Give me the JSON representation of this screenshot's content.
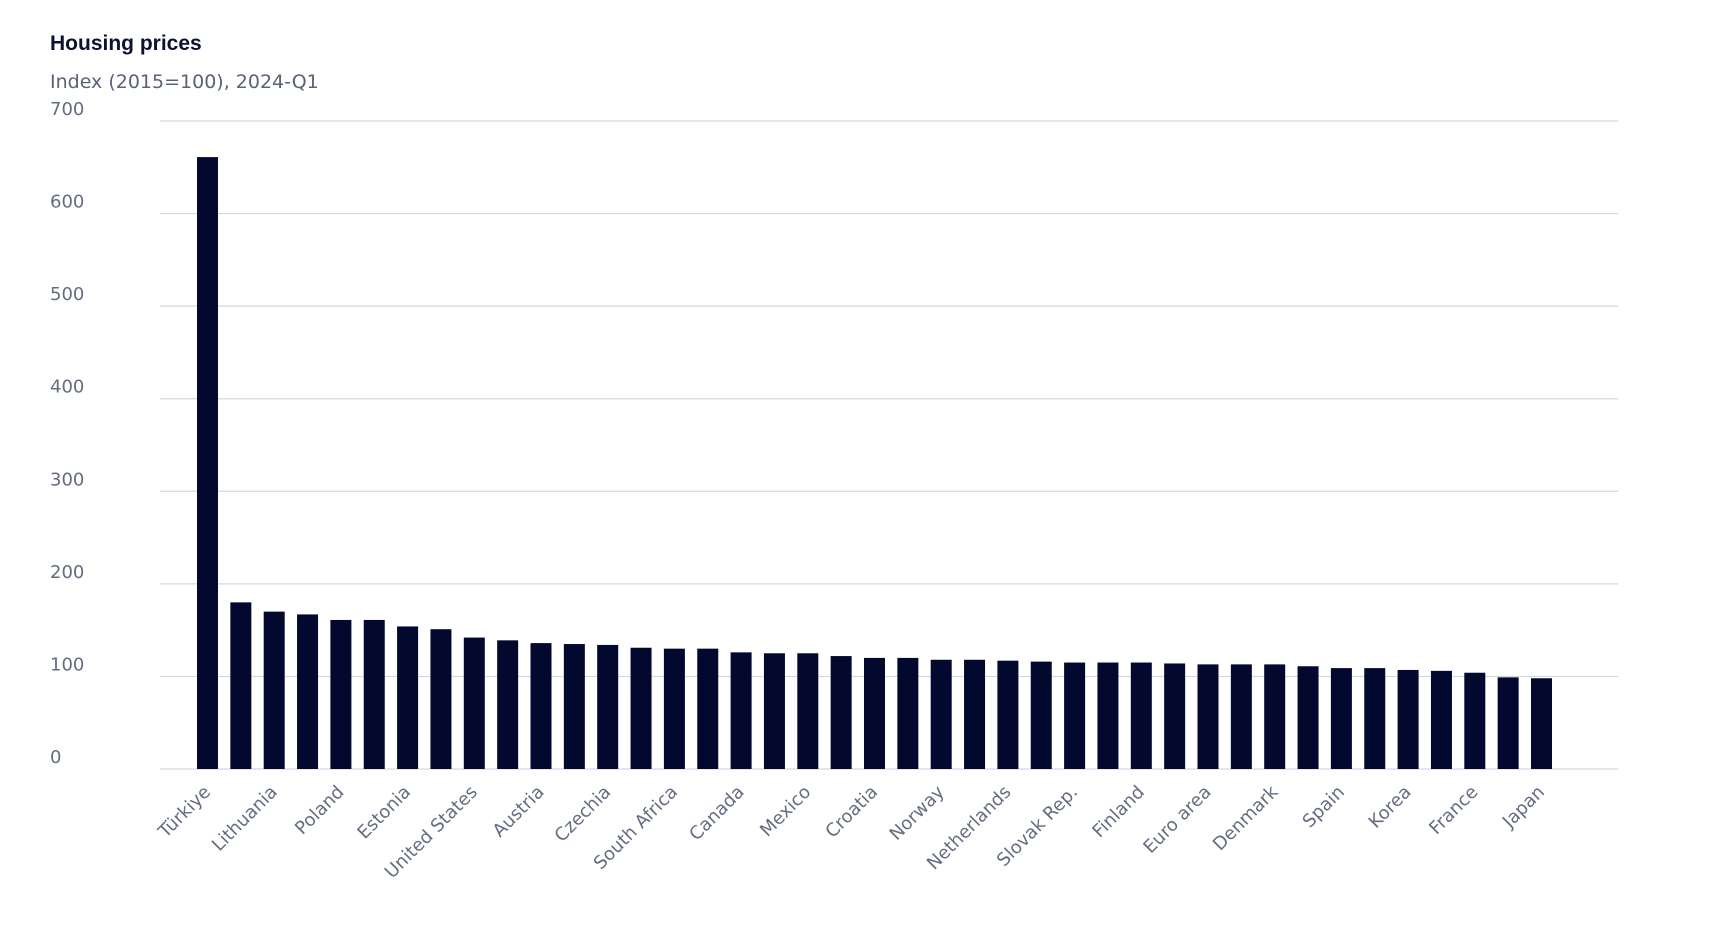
{
  "colors": {
    "bar": "#03082e",
    "grid": "#d5d7e0",
    "axis_text": "#646d80",
    "title": "#0c1230",
    "subtitle": "#5a6375"
  },
  "chart_data": {
    "type": "bar",
    "title": "Housing prices",
    "subtitle": "Index (2015=100), 2024-Q1",
    "xlabel": "",
    "ylabel": "",
    "ylim": [
      0,
      700
    ],
    "yticks": [
      0,
      100,
      200,
      300,
      400,
      500,
      600,
      700
    ],
    "grid": true,
    "legend": "none",
    "labelled_categories": [
      "Türkiye",
      "Lithuania",
      "Poland",
      "Estonia",
      "United States",
      "Austria",
      "Czechia",
      "South Africa",
      "Canada",
      "Mexico",
      "Croatia",
      "Norway",
      "Netherlands",
      "Slovak Rep.",
      "Finland",
      "Euro area",
      "Denmark",
      "Spain",
      "Korea",
      "France",
      "Japan"
    ],
    "label_every": 2,
    "values": [
      661,
      180,
      170,
      167,
      161,
      161,
      154,
      151,
      142,
      139,
      136,
      135,
      134,
      131,
      130,
      130,
      126,
      125,
      125,
      122,
      120,
      120,
      118,
      118,
      117,
      116,
      115,
      115,
      115,
      114,
      113,
      113,
      113,
      111,
      109,
      109,
      107,
      106,
      104,
      99,
      98
    ]
  }
}
